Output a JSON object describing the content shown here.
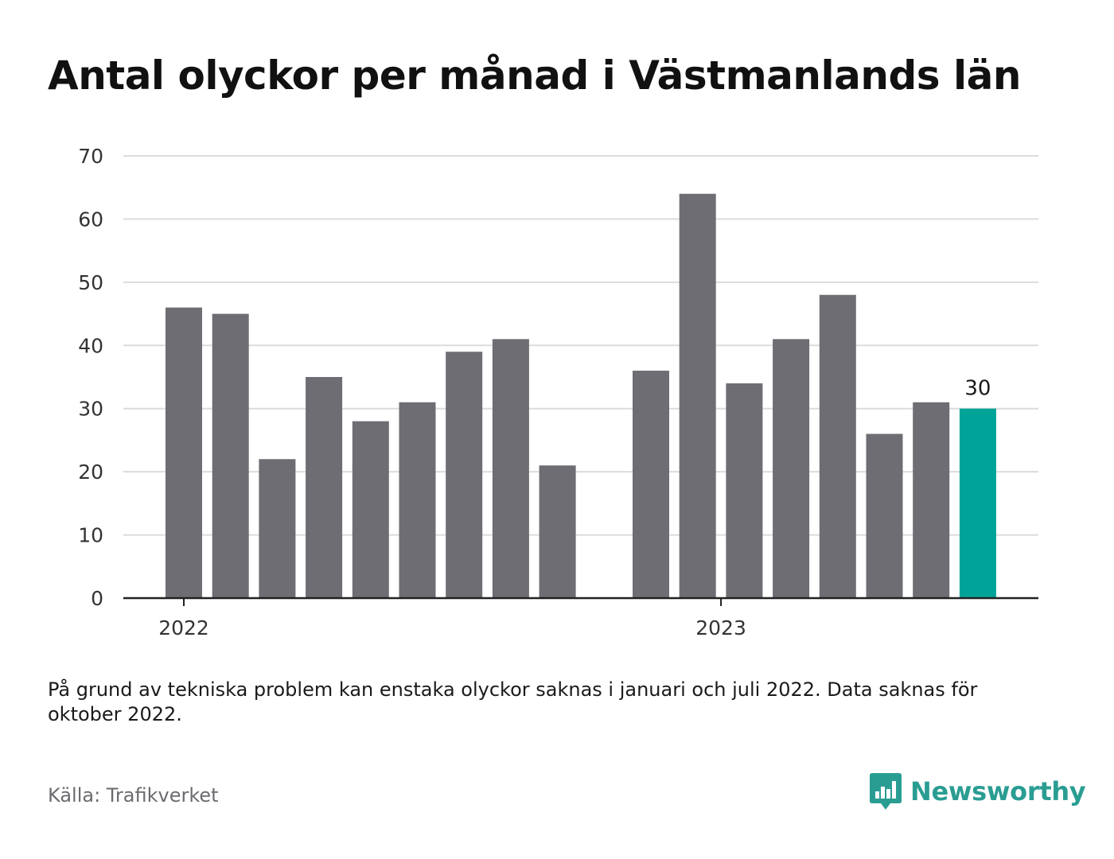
{
  "title": "Antal olyckor per månad i Västmanlands län",
  "note": "På grund av tekniska problem kan enstaka olyckor saknas i januari och juli 2022. Data saknas för oktober 2022.",
  "source": "Källa: Trafikverket",
  "brand": {
    "name": "Newsworthy",
    "icon": "newsworthy-logo-icon",
    "color": "#2a9d93"
  },
  "colors": {
    "bar": "#6e6d73",
    "highlight": "#00a398",
    "grid": "#dcdcdc",
    "axis": "#222222"
  },
  "chart_data": {
    "type": "bar",
    "ylim": [
      0,
      70
    ],
    "yticks": [
      0,
      10,
      20,
      30,
      40,
      50,
      60,
      70
    ],
    "xtick_labels": [
      "2022",
      "2023"
    ],
    "grid": true,
    "bars": [
      {
        "period": "2022-01",
        "value": 46
      },
      {
        "period": "2022-02",
        "value": 45
      },
      {
        "period": "2022-03",
        "value": 22
      },
      {
        "period": "2022-04",
        "value": 35
      },
      {
        "period": "2022-05",
        "value": 28
      },
      {
        "period": "2022-06",
        "value": 31
      },
      {
        "period": "2022-07",
        "value": 39
      },
      {
        "period": "2022-08",
        "value": 41
      },
      {
        "period": "2022-09",
        "value": 21
      },
      {
        "period": "2022-10",
        "value": null
      },
      {
        "period": "2022-11",
        "value": 36
      },
      {
        "period": "2022-12",
        "value": 64
      },
      {
        "period": "2023-01",
        "value": 34
      },
      {
        "period": "2023-02",
        "value": 41
      },
      {
        "period": "2023-03",
        "value": 48
      },
      {
        "period": "2023-04",
        "value": 26
      },
      {
        "period": "2023-05",
        "value": 31
      },
      {
        "period": "2023-06",
        "value": 30
      }
    ],
    "highlight_period": "2023-06",
    "data_label": "30"
  }
}
